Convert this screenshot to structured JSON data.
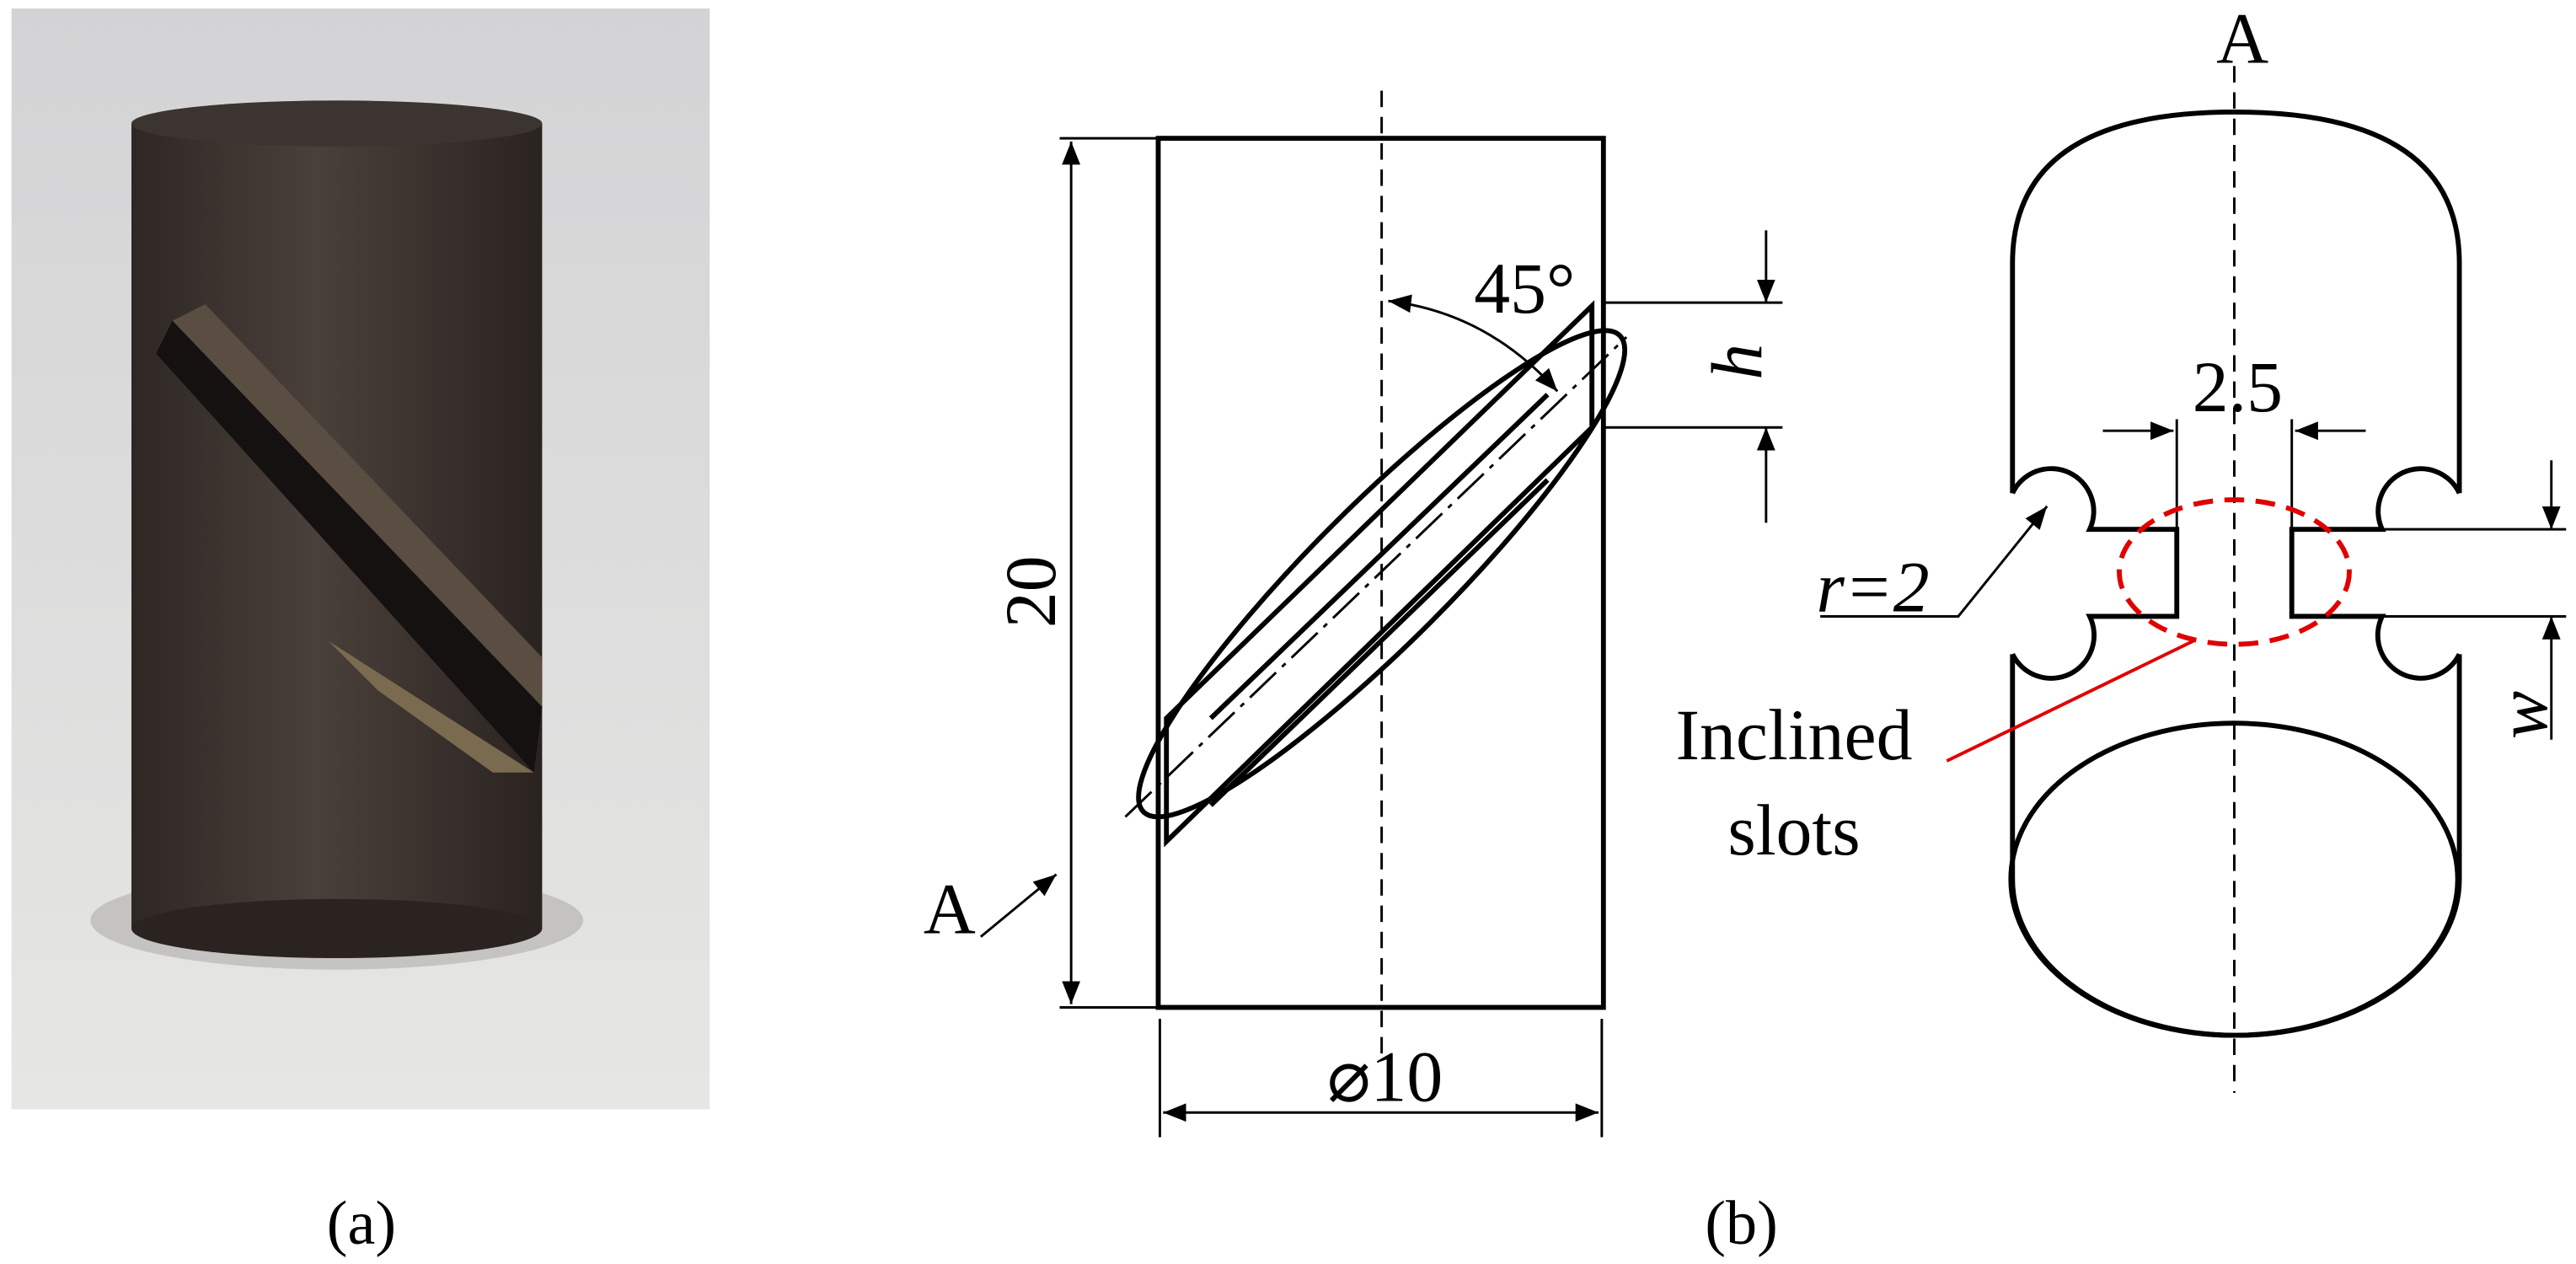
{
  "panel_a": {
    "label": "(a)"
  },
  "panel_b": {
    "label": "(b)",
    "side_view": {
      "height": "20",
      "diameter": "⌀10",
      "angle": "45°",
      "slot_height": "h",
      "section_mark": "A"
    },
    "section_view": {
      "section_mark": "A",
      "neck_width": "2.5",
      "radius": "r=2",
      "slot_width": "w",
      "callout": [
        "Inclined",
        "slots"
      ]
    }
  }
}
